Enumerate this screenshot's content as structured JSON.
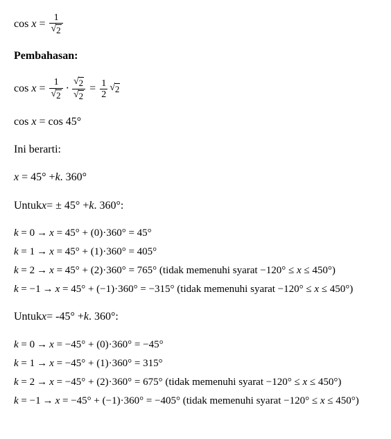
{
  "eq1": {
    "lhs": "cos",
    "var": "x",
    "rhs_num": "1",
    "rhs_den_rad": "2"
  },
  "pembahasan_label": "Pembahasan:",
  "eq2": {
    "lhs": "cos",
    "var": "x",
    "f1_num": "1",
    "f1_den_rad": "2",
    "f2_num_rad": "2",
    "f2_den_rad": "2",
    "f3_num": "1",
    "f3_den": "2",
    "f3_tail_rad": "2"
  },
  "eq3": {
    "lhs": "cos",
    "var": "x",
    "rhs": "cos 45°"
  },
  "ini_berarti": "Ini berarti:",
  "general": {
    "var": "x",
    "rhs": "45° + ",
    "kvar": "k",
    "tail": " . 360°"
  },
  "untuk1": {
    "prefix": "Untuk ",
    "var": "x",
    "mid": " = ± 45° + ",
    "kvar": "k",
    "tail": " . 360°:"
  },
  "block1": {
    "sign": "",
    "rows": [
      {
        "k": "0",
        "kexpr": "(0)",
        "res": "45°",
        "note": ""
      },
      {
        "k": "1",
        "kexpr": "(1)",
        "res": "405°",
        "note": ""
      },
      {
        "k": "2",
        "kexpr": "(2)",
        "res": "765°",
        "note": "(tidak memenuhi syarat  −120° ≤ x ≤ 450°)"
      },
      {
        "k": "−1",
        "kexpr": "(−1)",
        "res": "−315°",
        "note": "(tidak memenuhi syarat  −120° ≤ x ≤ 450°)"
      }
    ]
  },
  "untuk2": {
    "prefix": "Untuk ",
    "var": "x",
    "mid": " = -45° + ",
    "kvar": "k",
    "tail": " . 360°:"
  },
  "block2": {
    "sign": "−",
    "rows": [
      {
        "k": "0",
        "kexpr": "(0)",
        "res": "−45°",
        "note": ""
      },
      {
        "k": "1",
        "kexpr": "(1)",
        "res": "315°",
        "note": ""
      },
      {
        "k": "2",
        "kexpr": "(2)",
        "res": "675°",
        "note": "(tidak memenuhi syarat  −120° ≤ x ≤ 450°)"
      },
      {
        "k": "−1",
        "kexpr": "(−1)",
        "res": "−405°",
        "note": "(tidak memenuhi syarat  −120° ≤ x ≤ 450°)"
      }
    ]
  },
  "base_angle": "45°",
  "period": "360°"
}
